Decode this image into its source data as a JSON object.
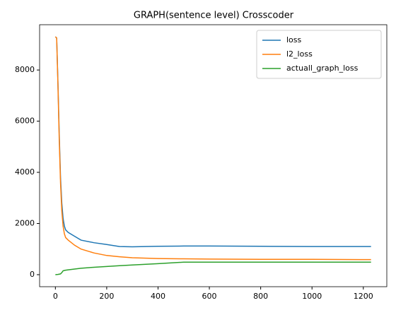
{
  "chart_data": {
    "type": "line",
    "title": "GRAPH(sentence level) Crosscoder",
    "x": [
      0,
      5,
      10,
      15,
      20,
      25,
      30,
      35,
      40,
      50,
      75,
      100,
      150,
      200,
      250,
      300,
      400,
      500,
      600,
      800,
      1000,
      1200,
      1230
    ],
    "series": [
      {
        "name": "loss",
        "color": "#1f77b4",
        "values": [
          9300,
          9250,
          7500,
          5500,
          3800,
          2800,
          2200,
          1900,
          1750,
          1650,
          1500,
          1350,
          1250,
          1180,
          1100,
          1090,
          1110,
          1120,
          1120,
          1110,
          1100,
          1100,
          1100
        ]
      },
      {
        "name": "l2_loss",
        "color": "#ff7f0e",
        "values": [
          9300,
          9250,
          7400,
          5300,
          3600,
          2500,
          1900,
          1600,
          1450,
          1350,
          1150,
          1000,
          850,
          750,
          700,
          660,
          630,
          620,
          610,
          600,
          600,
          590,
          590
        ]
      },
      {
        "name": "actuall_graph_loss",
        "color": "#2ca02c",
        "values": [
          0,
          5,
          10,
          20,
          30,
          80,
          150,
          165,
          175,
          190,
          220,
          250,
          290,
          320,
          350,
          380,
          430,
          490,
          490,
          490,
          490,
          490,
          490
        ]
      }
    ],
    "xlim": [
      -61.5,
      1291.5
    ],
    "xticks": [
      0,
      200,
      400,
      600,
      800,
      1000,
      1200
    ],
    "ylim": [
      -470,
      9770
    ],
    "yticks": [
      0,
      2000,
      4000,
      6000,
      8000
    ],
    "legend": "upper right",
    "grid": false
  }
}
